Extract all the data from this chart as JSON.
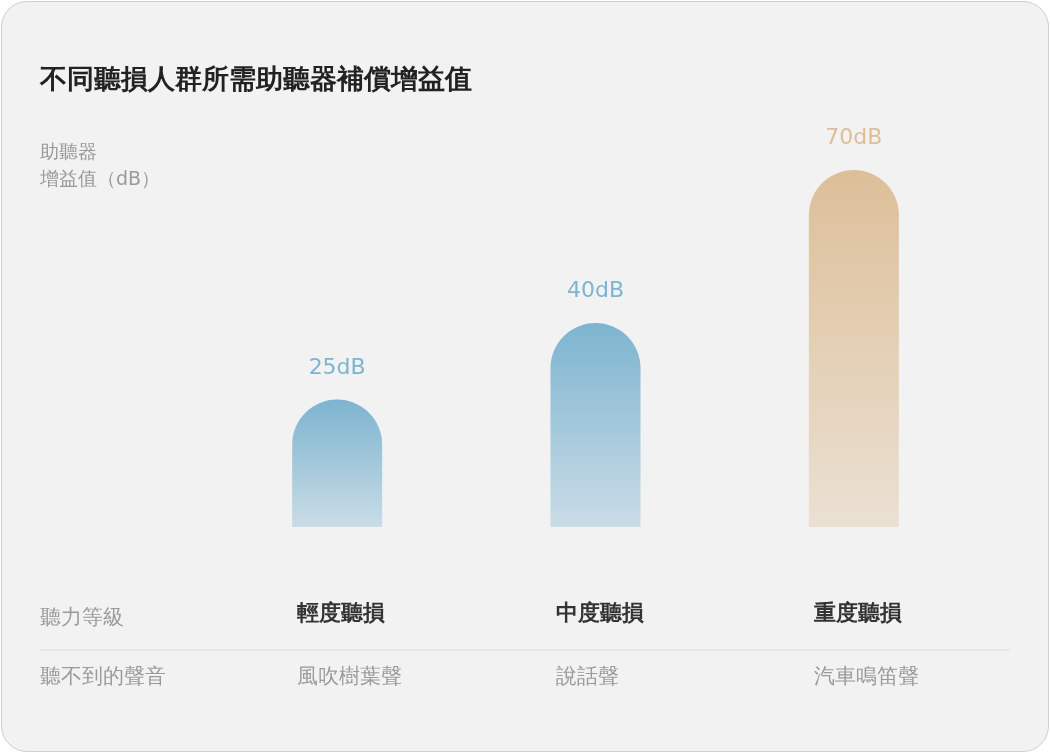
{
  "chart_data": {
    "type": "bar",
    "title": "不同聽損人群所需助聽器補償增益值",
    "ylabel": "助聽器增益值（dB）",
    "xlabel": "聽力等級",
    "categories": [
      "輕度聽損",
      "中度聽損",
      "重度聽損"
    ],
    "values": [
      25,
      40,
      70
    ],
    "value_labels": [
      "25dB",
      "40dB",
      "70dB"
    ],
    "colors": [
      "#7db4d0",
      "#7db4d0",
      "#dcbf98"
    ],
    "annotations": [
      "聽不到的聲音",
      "風吹樹葉聲",
      "說話聲",
      "汽車鳴笛聲"
    ]
  }
}
